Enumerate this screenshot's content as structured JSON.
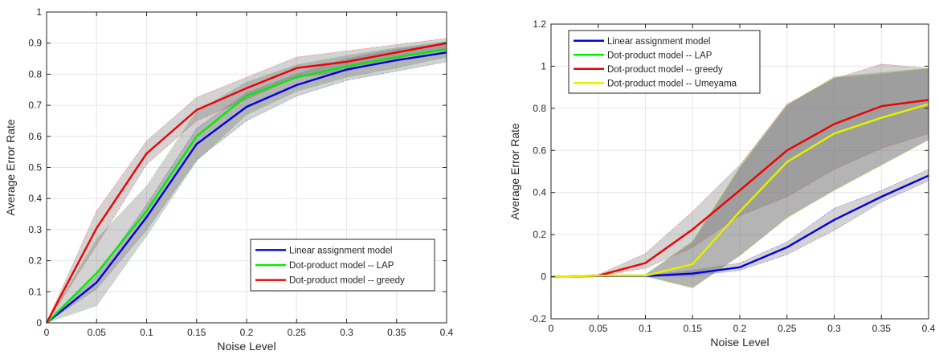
{
  "chart_data": [
    {
      "type": "line",
      "x": [
        0,
        0.05,
        0.1,
        0.15,
        0.2,
        0.25,
        0.3,
        0.35,
        0.4
      ],
      "xlabel": "Noise Level",
      "ylabel": "Average Error Rate",
      "xlim": [
        0,
        0.4
      ],
      "ylim": [
        0,
        1
      ],
      "xticks": [
        0,
        0.05,
        0.1,
        0.15,
        0.2,
        0.25,
        0.3,
        0.35,
        0.4
      ],
      "xtick_labels": [
        "0",
        "0.05",
        "0.1",
        "0.15",
        "0.2",
        "0.25",
        "0.3",
        "0.35",
        "0.4"
      ],
      "yticks": [
        0,
        0.1,
        0.2,
        0.3,
        0.4,
        0.5,
        0.6,
        0.7,
        0.8,
        0.9,
        1
      ],
      "ytick_labels": [
        "0",
        "0.1",
        "0.2",
        "0.3",
        "0.4",
        "0.5",
        "0.6",
        "0.7",
        "0.8",
        "0.9",
        "1"
      ],
      "grid": true,
      "legend_position": "bottom-right",
      "series": [
        {
          "name": "Linear assignment model",
          "color": "#0000dd",
          "values": [
            0,
            0.13,
            0.34,
            0.575,
            0.695,
            0.765,
            0.815,
            0.845,
            0.87
          ],
          "lower": [
            0,
            0.11,
            0.3,
            0.525,
            0.65,
            0.73,
            0.78,
            0.81,
            0.84
          ],
          "upper": [
            0,
            0.15,
            0.38,
            0.625,
            0.74,
            0.8,
            0.85,
            0.88,
            0.9
          ]
        },
        {
          "name": "Dot-product model -- LAP",
          "color": "#00ee00",
          "values": [
            0,
            0.16,
            0.36,
            0.6,
            0.73,
            0.79,
            0.825,
            0.855,
            0.88
          ],
          "lower": [
            0,
            0.055,
            0.28,
            0.52,
            0.67,
            0.745,
            0.79,
            0.82,
            0.855
          ],
          "upper": [
            0,
            0.27,
            0.44,
            0.68,
            0.775,
            0.83,
            0.86,
            0.885,
            0.905
          ]
        },
        {
          "name": "Dot-product model -- greedy",
          "color": "#ee0000",
          "values": [
            0,
            0.305,
            0.545,
            0.685,
            0.755,
            0.82,
            0.84,
            0.87,
            0.9
          ],
          "lower": [
            0,
            0.25,
            0.51,
            0.65,
            0.72,
            0.79,
            0.81,
            0.85,
            0.885
          ],
          "upper": [
            0,
            0.36,
            0.585,
            0.725,
            0.79,
            0.855,
            0.875,
            0.895,
            0.915
          ]
        }
      ]
    },
    {
      "type": "line",
      "x": [
        0,
        0.05,
        0.1,
        0.15,
        0.2,
        0.25,
        0.3,
        0.35,
        0.4
      ],
      "xlabel": "Noise Level",
      "ylabel": "Average Error Rate",
      "xlim": [
        0,
        0.4
      ],
      "ylim": [
        -0.2,
        1.2
      ],
      "xticks": [
        0,
        0.05,
        0.1,
        0.15,
        0.2,
        0.25,
        0.3,
        0.35,
        0.4
      ],
      "xtick_labels": [
        "0",
        "0.05",
        "0.1",
        "0.15",
        "0.2",
        "0.25",
        "0.3",
        "0.35",
        "0.4"
      ],
      "yticks": [
        -0.2,
        0,
        0.2,
        0.4,
        0.6,
        0.8,
        1,
        1.2
      ],
      "ytick_labels": [
        "-0.2",
        "0",
        "0.2",
        "0.4",
        "0.6",
        "0.8",
        "1",
        "1.2"
      ],
      "grid": true,
      "legend_position": "top-left",
      "series": [
        {
          "name": "Linear assignment model",
          "color": "#0000dd",
          "values": [
            0,
            0.003,
            0.003,
            0.015,
            0.045,
            0.14,
            0.27,
            0.38,
            0.48
          ],
          "lower": [
            0,
            0.001,
            0.001,
            0.005,
            0.03,
            0.105,
            0.22,
            0.355,
            0.455
          ],
          "upper": [
            0,
            0.005,
            0.005,
            0.03,
            0.065,
            0.165,
            0.325,
            0.41,
            0.51
          ]
        },
        {
          "name": "Dot-product model -- LAP",
          "color": "#00ee00",
          "values": [
            0,
            0.005,
            0.005,
            0.06,
            0.31,
            0.545,
            0.68,
            0.755,
            0.82
          ],
          "lower": [
            0,
            0.002,
            0.002,
            -0.05,
            0.1,
            0.28,
            0.41,
            0.53,
            0.65
          ],
          "upper": [
            0,
            0.01,
            0.01,
            0.17,
            0.52,
            0.815,
            0.95,
            0.97,
            0.99
          ]
        },
        {
          "name": "Dot-product model -- greedy",
          "color": "#ee0000",
          "values": [
            0,
            0.005,
            0.065,
            0.225,
            0.41,
            0.6,
            0.725,
            0.81,
            0.84
          ],
          "lower": [
            0,
            0.002,
            0.04,
            0.14,
            0.29,
            0.38,
            0.51,
            0.61,
            0.68
          ],
          "upper": [
            0,
            0.01,
            0.11,
            0.31,
            0.53,
            0.82,
            0.94,
            1.01,
            0.99
          ]
        },
        {
          "name": "Dot-product model -- Umeyama",
          "color": "#eeee00",
          "values": [
            0,
            0.005,
            0.005,
            0.06,
            0.31,
            0.545,
            0.68,
            0.755,
            0.82
          ],
          "lower": [
            0,
            0.002,
            0.002,
            -0.055,
            0.1,
            0.28,
            0.41,
            0.53,
            0.65
          ],
          "upper": [
            0,
            0.01,
            0.01,
            0.165,
            0.52,
            0.815,
            0.945,
            0.965,
            0.99
          ]
        }
      ]
    }
  ]
}
